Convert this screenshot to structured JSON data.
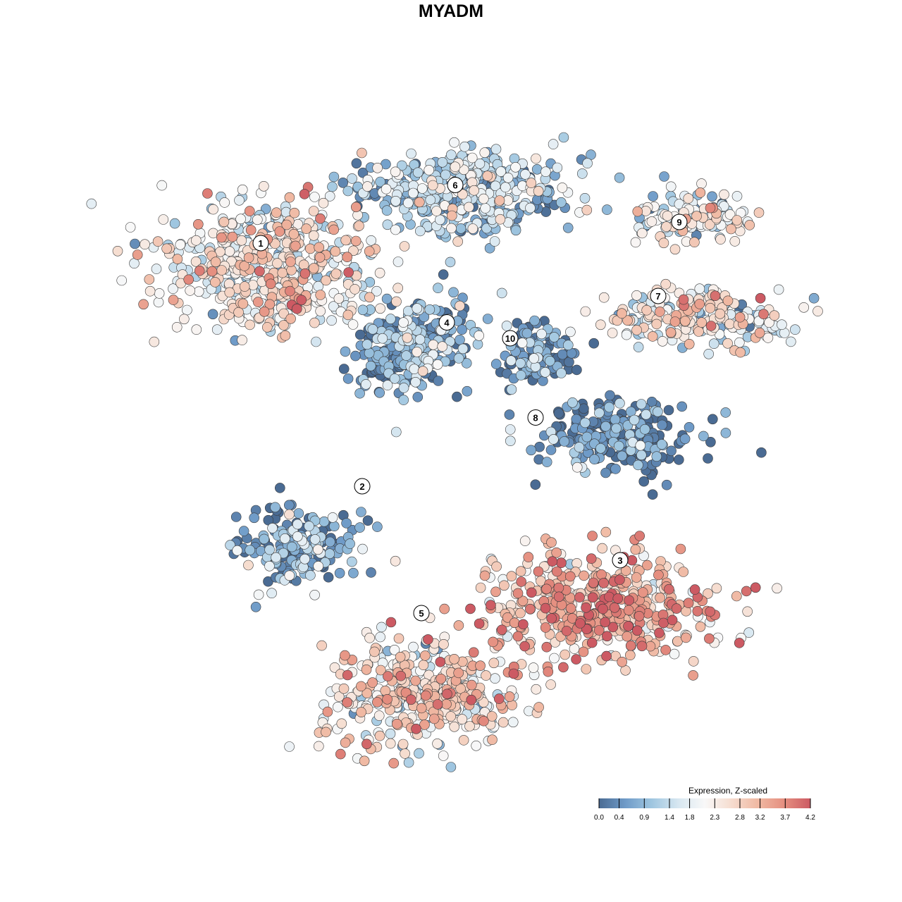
{
  "title": "MYADM",
  "chart_data": {
    "type": "scatter",
    "title": "MYADM",
    "xlabel": "",
    "ylabel": "",
    "grid": false,
    "legend": {
      "title": "Expression, Z-scaled",
      "placement": "bottom-right",
      "ticks": [
        "0.0",
        "0.4",
        "0.9",
        "1.4",
        "1.8",
        "2.3",
        "2.8",
        "3.2",
        "3.7",
        "4.2"
      ],
      "range": [
        0.0,
        4.2
      ],
      "colors": [
        "#4a6b93",
        "#6f9bc8",
        "#9fc6e0",
        "#d7e7f1",
        "#f8f8f8",
        "#f6ddd0",
        "#f0b9a3",
        "#e58f80",
        "#cc5a63"
      ]
    },
    "clusters": [
      {
        "label": "1",
        "x": -22.5,
        "y": 17.0,
        "mean_expression": 2.3
      },
      {
        "label": "2",
        "x": -10.5,
        "y": -6.0,
        "mean_expression": 0.5
      },
      {
        "label": "3",
        "x": 20.0,
        "y": -13.0,
        "mean_expression": 3.1
      },
      {
        "label": "4",
        "x": -0.5,
        "y": 9.5,
        "mean_expression": 0.6
      },
      {
        "label": "5",
        "x": -3.5,
        "y": -18.0,
        "mean_expression": 2.4
      },
      {
        "label": "6",
        "x": 0.5,
        "y": 22.5,
        "mean_expression": 1.2
      },
      {
        "label": "7",
        "x": 24.5,
        "y": 12.0,
        "mean_expression": 2.1
      },
      {
        "label": "8",
        "x": 10.0,
        "y": 0.5,
        "mean_expression": 0.2
      },
      {
        "label": "9",
        "x": 27.0,
        "y": 19.0,
        "mean_expression": 1.9
      },
      {
        "label": "10",
        "x": 7.0,
        "y": 8.0,
        "mean_expression": 0.3
      }
    ]
  }
}
